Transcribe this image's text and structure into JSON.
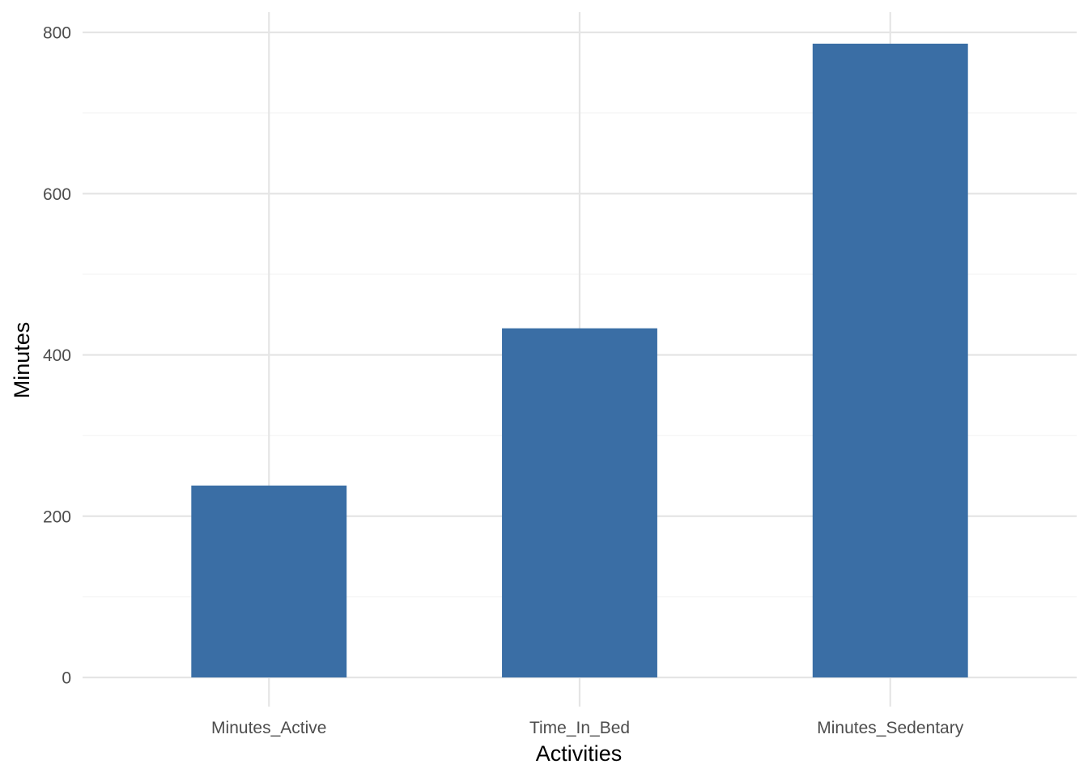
{
  "chart_data": {
    "type": "bar",
    "categories": [
      "Minutes_Active",
      "Time_In_Bed",
      "Minutes_Sedentary"
    ],
    "values": [
      238,
      433,
      786
    ],
    "title": "",
    "xlabel": "Activities",
    "ylabel": "Minutes",
    "ylim": [
      0,
      800
    ],
    "yticks": [
      "0",
      "200",
      "400",
      "600",
      "800"
    ],
    "ytick_values": [
      0,
      200,
      400,
      600,
      800
    ],
    "minor_ytick_values": [
      100,
      300,
      500,
      700
    ],
    "grid": true,
    "legend": "none",
    "colors": {
      "bar": "#3A6EA5",
      "grid_major": "#E5E5E5",
      "grid_minor": "#F0F0F0",
      "tick_text": "#4D4D4D"
    }
  }
}
